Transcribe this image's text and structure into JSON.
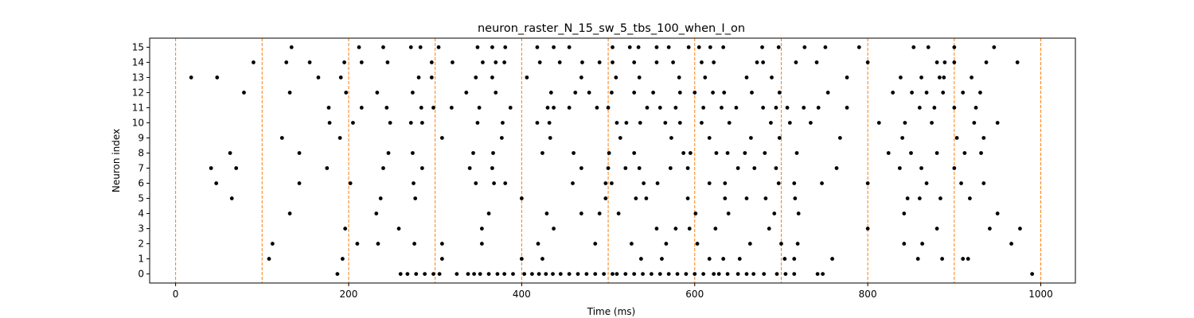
{
  "chart_data": {
    "type": "scatter",
    "title": "neuron_raster_N_15_sw_5_tbs_100_when_I_on",
    "xlabel": "Time (ms)",
    "ylabel": "Neuron index",
    "xlim": [
      -30,
      1040
    ],
    "ylim": [
      -0.6,
      15.6
    ],
    "xticks": [
      0,
      200,
      400,
      600,
      800,
      1000
    ],
    "yticks": [
      0,
      1,
      2,
      3,
      4,
      5,
      6,
      7,
      8,
      9,
      10,
      11,
      12,
      13,
      14,
      15
    ],
    "grid": false,
    "marker_color": "#000000",
    "vlines": {
      "x": [
        0,
        100,
        200,
        300,
        400,
        500,
        600,
        700,
        800,
        900,
        1000
      ],
      "color": "#ff7f0e",
      "style": "dashed"
    },
    "spikes": {
      "0": [
        187,
        260,
        268,
        278,
        288,
        298,
        305,
        325,
        338,
        345,
        352,
        362,
        372,
        380,
        390,
        403,
        412,
        420,
        428,
        436,
        445,
        455,
        465,
        475,
        485,
        495,
        505,
        510,
        520,
        530,
        540,
        550,
        560,
        570,
        580,
        590,
        600,
        610,
        622,
        628,
        638,
        650,
        660,
        668,
        680,
        695,
        705,
        715,
        742,
        748,
        990
      ],
      "1": [
        108,
        193,
        308,
        400,
        424,
        538,
        562,
        617,
        633,
        652,
        704,
        715,
        759,
        858,
        886,
        910,
        916
      ],
      "2": [
        112,
        210,
        234,
        276,
        308,
        354,
        419,
        485,
        527,
        567,
        603,
        664,
        700,
        719,
        842,
        863,
        966
      ],
      "3": [
        196,
        258,
        354,
        437,
        556,
        578,
        594,
        624,
        686,
        800,
        880,
        941,
        976
      ],
      "4": [
        132,
        232,
        362,
        429,
        469,
        490,
        512,
        601,
        639,
        692,
        720,
        842,
        950
      ],
      "5": [
        65,
        237,
        277,
        400,
        497,
        532,
        544,
        592,
        635,
        660,
        682,
        716,
        846,
        860,
        884,
        918
      ],
      "6": [
        47,
        143,
        202,
        275,
        347,
        368,
        381,
        459,
        497,
        504,
        541,
        557,
        617,
        635,
        697,
        715,
        747,
        800,
        868,
        908,
        934
      ],
      "7": [
        41,
        70,
        175,
        240,
        285,
        340,
        366,
        469,
        500,
        520,
        536,
        572,
        592,
        650,
        669,
        694,
        764,
        837,
        862,
        900
      ],
      "8": [
        63,
        143,
        246,
        274,
        344,
        367,
        424,
        460,
        501,
        530,
        587,
        595,
        625,
        638,
        658,
        681,
        718,
        824,
        850,
        880,
        912,
        931
      ],
      "9": [
        123,
        190,
        308,
        377,
        433,
        514,
        573,
        617,
        665,
        698,
        768,
        840,
        903,
        934
      ],
      "10": [
        178,
        205,
        248,
        272,
        285,
        349,
        378,
        418,
        432,
        510,
        521,
        537,
        566,
        583,
        608,
        640,
        688,
        710,
        734,
        813,
        843,
        874,
        923,
        950
      ],
      "11": [
        177,
        215,
        244,
        284,
        298,
        319,
        351,
        387,
        430,
        437,
        455,
        487,
        500,
        545,
        560,
        578,
        610,
        631,
        648,
        679,
        694,
        707,
        726,
        743,
        776,
        860,
        877,
        900,
        925
      ],
      "12": [
        79,
        132,
        197,
        233,
        274,
        336,
        370,
        434,
        462,
        478,
        504,
        530,
        552,
        583,
        600,
        621,
        634,
        666,
        698,
        754,
        829,
        851,
        868,
        887,
        910,
        930
      ],
      "13": [
        18,
        48,
        165,
        191,
        281,
        296,
        347,
        366,
        406,
        469,
        509,
        536,
        582,
        612,
        660,
        689,
        776,
        838,
        862,
        883,
        888,
        920
      ],
      "14": [
        90,
        128,
        155,
        195,
        215,
        245,
        296,
        320,
        355,
        370,
        380,
        421,
        444,
        470,
        490,
        505,
        530,
        556,
        575,
        608,
        622,
        672,
        679,
        717,
        741,
        800,
        880,
        889,
        900,
        937,
        973
      ],
      "15": [
        134,
        212,
        240,
        272,
        283,
        304,
        349,
        366,
        381,
        418,
        437,
        455,
        505,
        525,
        535,
        556,
        570,
        593,
        605,
        618,
        633,
        678,
        697,
        727,
        751,
        790,
        853,
        870,
        900,
        946
      ]
    }
  }
}
